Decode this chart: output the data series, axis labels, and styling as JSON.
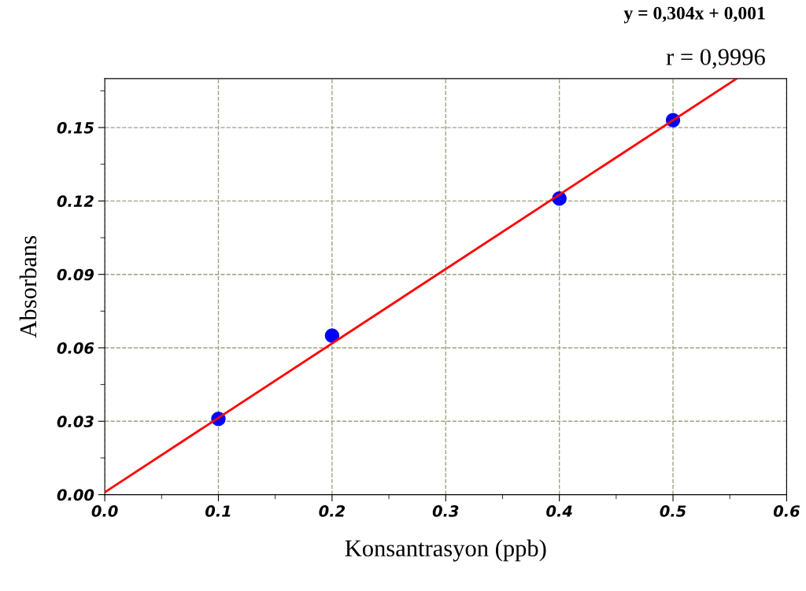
{
  "chart_data": {
    "type": "scatter",
    "xlabel": "Konsantrasyon (ppb)",
    "ylabel": "Absorbans",
    "annotations": [
      "y = 0,304x + 0,001",
      "r = 0,9996"
    ],
    "series": [
      {
        "color": "#0000ff",
        "x": [
          0.1,
          0.2,
          0.4,
          0.5
        ],
        "values": [
          0.031,
          0.065,
          0.121,
          0.153
        ],
        "marker": "circle"
      },
      {
        "type": "line",
        "color": "#ff0000",
        "x": [
          0,
          0.556
        ],
        "values": [
          0.001,
          0.17
        ],
        "marker": "none",
        "line_style": "solid"
      }
    ],
    "xlim": [
      0,
      0.6
    ],
    "ylim": [
      0,
      0.17
    ],
    "xticks": [
      {
        "value": 0,
        "label": "0.0"
      },
      {
        "value": 0.1,
        "label": "0.1"
      },
      {
        "value": 0.2,
        "label": "0.2"
      },
      {
        "value": 0.3,
        "label": "0.3"
      },
      {
        "value": 0.4,
        "label": "0.4"
      },
      {
        "value": 0.5,
        "label": "0.5"
      },
      {
        "value": 0.6,
        "label": "0.6"
      }
    ],
    "yticks": [
      {
        "value": 0,
        "label": "0.00"
      },
      {
        "value": 0.03,
        "label": "0.03"
      },
      {
        "value": 0.06,
        "label": "0.06"
      },
      {
        "value": 0.09,
        "label": "0.09"
      },
      {
        "value": 0.12,
        "label": "0.12"
      },
      {
        "value": 0.15,
        "label": "0.15"
      }
    ],
    "grid": true
  }
}
